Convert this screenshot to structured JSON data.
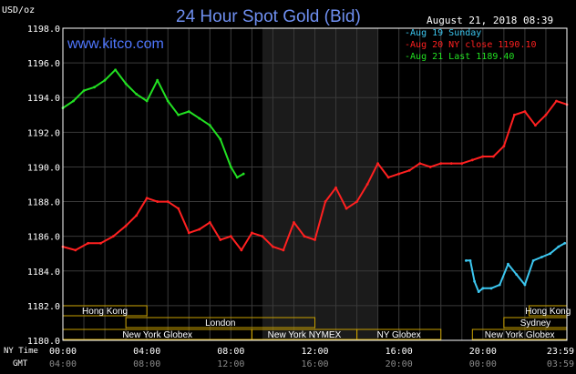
{
  "header": {
    "title": "24 Hour Spot Gold (Bid)",
    "units": "USD/oz",
    "timestamp": "August 21, 2018 08:39",
    "brand": "www.kitco.com"
  },
  "chart_data": {
    "type": "line",
    "title": "24 Hour Spot Gold (Bid)",
    "ylabel": "USD/oz",
    "xlabel": "",
    "ylim": [
      1180.0,
      1198.0
    ],
    "yticks": [
      "1180.0",
      "1182.0",
      "1184.0",
      "1186.0",
      "1188.0",
      "1190.0",
      "1192.0",
      "1194.0",
      "1196.0",
      "1198.0"
    ],
    "xlim": [
      0,
      24
    ],
    "xticks": [
      {
        "h": 0,
        "ny": "00:00",
        "gmt": "04:00"
      },
      {
        "h": 4,
        "ny": "04:00",
        "gmt": "08:00"
      },
      {
        "h": 8,
        "ny": "08:00",
        "gmt": "12:00"
      },
      {
        "h": 12,
        "ny": "12:00",
        "gmt": "16:00"
      },
      {
        "h": 16,
        "ny": "16:00",
        "gmt": "20:00"
      },
      {
        "h": 20,
        "ny": "20:00",
        "gmt": "00:00"
      },
      {
        "h": 24,
        "ny": "23:59",
        "gmt": "03:59"
      }
    ],
    "row_labels": {
      "ny": "NY Time",
      "gmt": "GMT"
    },
    "grid": true,
    "shaded_range": [
      9.5,
      15.0
    ],
    "legend_position": "top-right",
    "series": [
      {
        "name": "Aug 19 Sunday",
        "color": "#3cc7f0",
        "x": [
          19.2,
          19.4,
          19.6,
          19.8,
          20.0,
          20.4,
          20.8,
          21.2,
          21.6,
          22.0,
          22.4,
          22.8,
          23.2,
          23.6,
          23.9
        ],
        "y": [
          1184.6,
          1184.6,
          1183.4,
          1182.8,
          1183.0,
          1183.0,
          1183.2,
          1184.4,
          1183.8,
          1183.2,
          1184.6,
          1184.8,
          1185.0,
          1185.4,
          1185.6
        ]
      },
      {
        "name": "Aug 20 NY close 1190.10",
        "color": "#ff2020",
        "x": [
          0.0,
          0.6,
          1.2,
          1.8,
          2.4,
          3.0,
          3.5,
          4.0,
          4.5,
          5.0,
          5.5,
          6.0,
          6.5,
          7.0,
          7.5,
          8.0,
          8.5,
          9.0,
          9.5,
          10.0,
          10.5,
          11.0,
          11.5,
          12.0,
          12.5,
          13.0,
          13.5,
          14.0,
          14.5,
          15.0,
          15.5,
          16.0,
          16.5,
          17.0,
          17.5,
          18.0,
          18.5,
          19.0,
          19.5,
          20.0,
          20.5,
          21.0,
          21.5,
          22.0,
          22.5,
          23.0,
          23.5,
          24.0
        ],
        "y": [
          1185.4,
          1185.2,
          1185.6,
          1185.6,
          1186.0,
          1186.6,
          1187.2,
          1188.2,
          1188.0,
          1188.0,
          1187.6,
          1186.2,
          1186.4,
          1186.8,
          1185.8,
          1186.0,
          1185.2,
          1186.2,
          1186.0,
          1185.4,
          1185.2,
          1186.8,
          1186.0,
          1185.8,
          1188.0,
          1188.8,
          1187.6,
          1188.0,
          1189.0,
          1190.2,
          1189.4,
          1189.6,
          1189.8,
          1190.2,
          1190.0,
          1190.2,
          1190.2,
          1190.2,
          1190.4,
          1190.6,
          1190.6,
          1191.2,
          1193.0,
          1193.2,
          1192.4,
          1193.0,
          1193.8,
          1193.6
        ]
      },
      {
        "name": "Aug 21 Last 1189.40",
        "color": "#22e022",
        "x": [
          0.0,
          0.5,
          1.0,
          1.5,
          2.0,
          2.5,
          3.0,
          3.5,
          4.0,
          4.5,
          5.0,
          5.5,
          6.0,
          6.5,
          7.0,
          7.5,
          8.0,
          8.3,
          8.6
        ],
        "y": [
          1193.4,
          1193.8,
          1194.4,
          1194.6,
          1195.0,
          1195.6,
          1194.8,
          1194.2,
          1193.8,
          1195.0,
          1193.8,
          1193.0,
          1193.2,
          1192.8,
          1192.4,
          1191.6,
          1190.0,
          1189.4,
          1189.6
        ]
      }
    ],
    "annotations": [
      {
        "name": "Hong Kong",
        "start": 0.0,
        "end": 4.0,
        "row": 0
      },
      {
        "name": "Hong Kong",
        "start": 22.2,
        "end": 24.0,
        "row": 0
      },
      {
        "name": "London",
        "start": 3.0,
        "end": 12.0,
        "row": 1
      },
      {
        "name": "Sydney",
        "start": 21.0,
        "end": 24.0,
        "row": 1
      },
      {
        "name": "New York Globex",
        "start": 0.0,
        "end": 9.0,
        "row": 2
      },
      {
        "name": "New York NYMEX",
        "start": 9.0,
        "end": 14.0,
        "row": 2
      },
      {
        "name": "NY Globex",
        "start": 14.0,
        "end": 18.0,
        "row": 2
      },
      {
        "name": "New York Globex",
        "start": 19.5,
        "end": 24.0,
        "row": 2
      }
    ]
  },
  "colors": {
    "background": "#000000",
    "axis": "#ffffff",
    "grid": "#3a3a3a",
    "shaded": "#1b1b1b",
    "market_box": "#c8a000"
  }
}
